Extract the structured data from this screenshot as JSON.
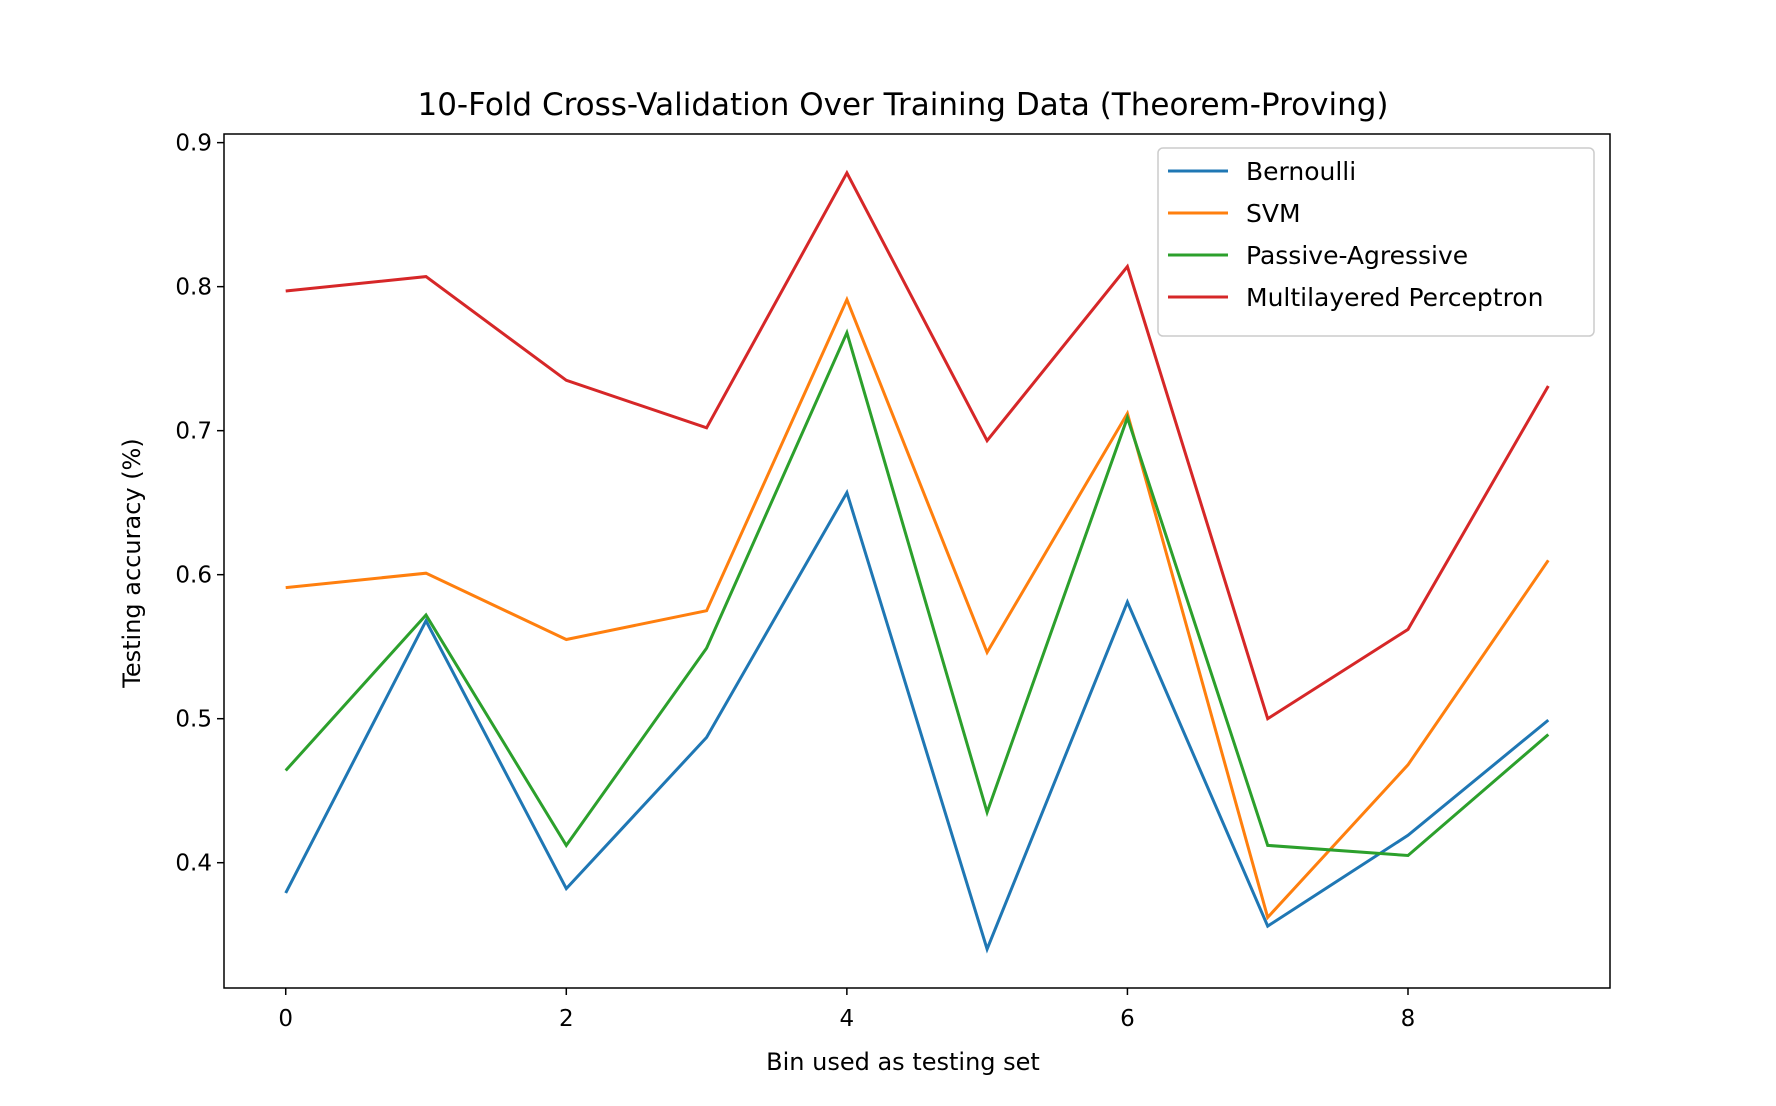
{
  "chart_data": {
    "type": "line",
    "title": "10-Fold Cross-Validation Over Training Data (Theorem-Proving)",
    "xlabel": "Bin used as testing set",
    "ylabel": "Testing accuracy (%)",
    "x": [
      0,
      1,
      2,
      3,
      4,
      5,
      6,
      7,
      8,
      9
    ],
    "xlim": [
      -0.44,
      9.44
    ],
    "ylim": [
      0.313,
      0.906
    ],
    "xticks": [
      0,
      2,
      4,
      6,
      8
    ],
    "xtick_labels": [
      "0",
      "2",
      "4",
      "6",
      "8"
    ],
    "yticks": [
      0.4,
      0.5,
      0.6,
      0.7,
      0.8,
      0.9
    ],
    "ytick_labels": [
      "0.4",
      "0.5",
      "0.6",
      "0.7",
      "0.8",
      "0.9"
    ],
    "grid": false,
    "legend_position": "top-right",
    "series": [
      {
        "name": "Bernoulli",
        "color": "#1f77b4",
        "values": [
          0.379,
          0.568,
          0.382,
          0.487,
          0.657,
          0.34,
          0.581,
          0.356,
          0.419,
          0.499
        ]
      },
      {
        "name": "SVM",
        "color": "#ff7f0e",
        "values": [
          0.591,
          0.601,
          0.555,
          0.575,
          0.791,
          0.546,
          0.712,
          0.362,
          0.468,
          0.61
        ]
      },
      {
        "name": "Passive-Agressive",
        "color": "#2ca02c",
        "values": [
          0.464,
          0.572,
          0.412,
          0.549,
          0.768,
          0.435,
          0.709,
          0.412,
          0.405,
          0.489
        ]
      },
      {
        "name": "Multilayered Perceptron",
        "color": "#d62728",
        "values": [
          0.797,
          0.807,
          0.735,
          0.702,
          0.879,
          0.693,
          0.814,
          0.5,
          0.562,
          0.731
        ]
      }
    ]
  }
}
